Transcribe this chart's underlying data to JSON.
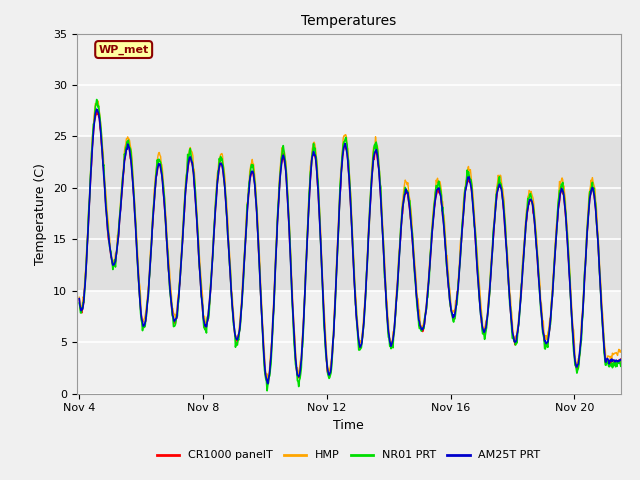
{
  "title": "Temperatures",
  "xlabel": "Time",
  "ylabel": "Temperature (C)",
  "ylim": [
    0,
    35
  ],
  "yticks": [
    0,
    5,
    10,
    15,
    20,
    25,
    30,
    35
  ],
  "xlim_days": [
    3.92,
    21.5
  ],
  "x_tick_days": [
    4,
    8,
    12,
    16,
    20
  ],
  "x_tick_labels": [
    "Nov 4",
    "Nov 8",
    "Nov 12",
    "Nov 16",
    "Nov 20"
  ],
  "series": [
    {
      "label": "CR1000 panelT",
      "color": "#ff0000",
      "lw": 1.0
    },
    {
      "label": "HMP",
      "color": "#ffa500",
      "lw": 1.0
    },
    {
      "label": "NR01 PRT",
      "color": "#00dd00",
      "lw": 1.2
    },
    {
      "label": "AM25T PRT",
      "color": "#0000cc",
      "lw": 1.2
    }
  ],
  "annotation_text": "WP_met",
  "bg_band_ymin": 10,
  "bg_band_ymax": 25,
  "bg_color": "#e0e0e0",
  "plot_bg": "#f0f0f0",
  "fig_bg": "#f0f0f0",
  "grid_color": "#ffffff"
}
